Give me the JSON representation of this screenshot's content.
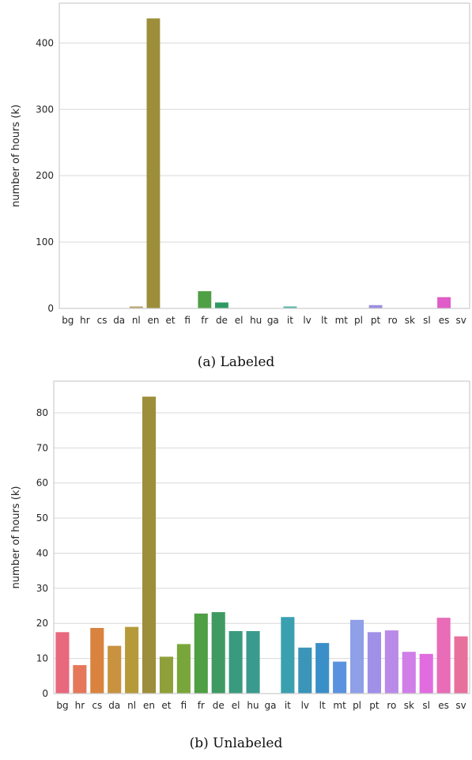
{
  "chart_data": [
    {
      "type": "bar",
      "caption": "(a) Labeled",
      "ylabel": "number of hours (k)",
      "categories": [
        "bg",
        "hr",
        "cs",
        "da",
        "nl",
        "en",
        "et",
        "fi",
        "fr",
        "de",
        "el",
        "hu",
        "ga",
        "it",
        "lv",
        "lt",
        "mt",
        "pl",
        "pt",
        "ro",
        "sk",
        "sl",
        "es",
        "sv"
      ],
      "values": [
        0.1,
        0.1,
        0.1,
        0.1,
        3,
        437,
        0.1,
        0.1,
        26,
        9,
        0.1,
        0.1,
        0.1,
        3,
        0.1,
        0.1,
        0.1,
        0.1,
        5,
        0.1,
        0.1,
        0.1,
        17,
        0.1
      ],
      "ylim": [
        0,
        460
      ],
      "yticks": [
        0,
        100,
        200,
        300,
        400
      ],
      "grid": true,
      "colors": [
        "#f77189",
        "#f7754f",
        "#dc8932",
        "#c39532",
        "#ae9d31",
        "#97a431",
        "#77ab31",
        "#50b131",
        "#33b07a",
        "#35ae93",
        "#36ada4",
        "#37abb4",
        "#38a9c5",
        "#3aa5df",
        "#6e9bf4",
        "#a48cf4",
        "#cc7af4",
        "#f45cf2",
        "#f565cc",
        "#f66bad",
        "#f56e9d",
        "#f4708f",
        "#f77189",
        "#f56e9d"
      ],
      "bar_colors_used": [
        "#b0a6a6",
        "#b0a6a6",
        "#b0a6a6",
        "#b0a6a6",
        "#bca46a",
        "#9c8e3a",
        "#b0a6a6",
        "#b0a6a6",
        "#4f9f45",
        "#2f9a62",
        "#b0a6a6",
        "#b0a6a6",
        "#b0a6a6",
        "#58b8a8",
        "#b0a6a6",
        "#b0a6a6",
        "#b0a6a6",
        "#b0a6a6",
        "#9c8fe0",
        "#b0a6a6",
        "#b0a6a6",
        "#b0a6a6",
        "#e05cc8",
        "#b0a6a6"
      ]
    },
    {
      "type": "bar",
      "caption": "(b) Unlabeled",
      "ylabel": "number of hours (k)",
      "categories": [
        "bg",
        "hr",
        "cs",
        "da",
        "nl",
        "en",
        "et",
        "fi",
        "fr",
        "de",
        "el",
        "hu",
        "ga",
        "it",
        "lv",
        "lt",
        "mt",
        "pl",
        "pt",
        "ro",
        "sk",
        "sl",
        "es",
        "sv"
      ],
      "values": [
        17.5,
        8.1,
        18.7,
        13.6,
        19.0,
        84.6,
        10.5,
        14.1,
        22.8,
        23.2,
        17.8,
        17.8,
        0,
        21.8,
        13.1,
        14.4,
        9.1,
        21.0,
        17.5,
        18.0,
        11.9,
        11.3,
        21.6,
        16.3
      ],
      "ylim": [
        0,
        89
      ],
      "yticks": [
        0,
        10,
        20,
        30,
        40,
        50,
        60,
        70,
        80
      ],
      "grid": true,
      "bar_colors_used": [
        "#e8687e",
        "#e5785a",
        "#d9833f",
        "#c8923f",
        "#b69a3a",
        "#9c8e3a",
        "#8fa03a",
        "#79a63a",
        "#4f9f45",
        "#3f9a62",
        "#3a9a7e",
        "#3a9a8e",
        "#3a9aa0",
        "#3aa0b0",
        "#3a95b8",
        "#3a8fc8",
        "#5a92e0",
        "#8f9fe8",
        "#a090e8",
        "#b98ae8",
        "#d07ee8",
        "#e06ce0",
        "#e86cb8",
        "#e8709c"
      ]
    }
  ]
}
